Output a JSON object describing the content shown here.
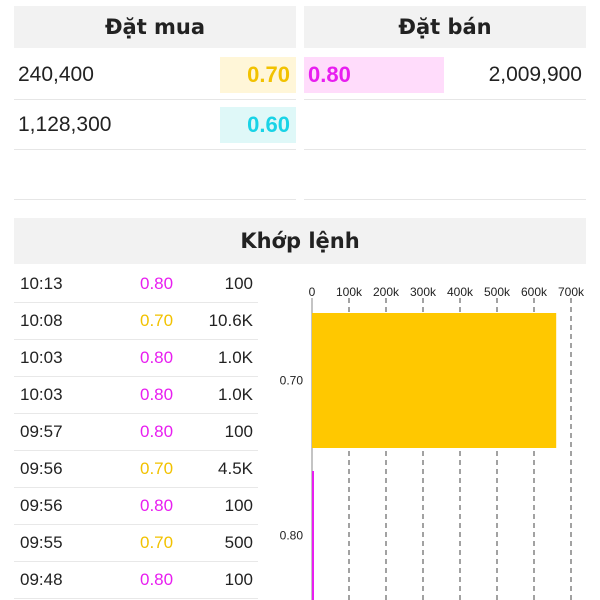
{
  "order_book": {
    "buy_title": "Đặt mua",
    "sell_title": "Đặt bán",
    "buy": [
      {
        "volume": "240,400",
        "price": "0.70",
        "color": "#f2c200",
        "bg": "#fff6d8"
      },
      {
        "volume": "1,128,300",
        "price": "0.60",
        "color": "#19d3e6",
        "bg": "#dff8f8"
      }
    ],
    "sell": [
      {
        "volume": "2,009,900",
        "price": "0.80",
        "color": "#e81ef0",
        "bg": "#ffdcfb"
      }
    ]
  },
  "match": {
    "title": "Khớp lệnh",
    "trades": [
      {
        "time": "10:13",
        "price": "0.80",
        "volume": "100",
        "color": "#e81ef0"
      },
      {
        "time": "10:08",
        "price": "0.70",
        "volume": "10.6K",
        "color": "#f2c200"
      },
      {
        "time": "10:03",
        "price": "0.80",
        "volume": "1.0K",
        "color": "#e81ef0"
      },
      {
        "time": "10:03",
        "price": "0.80",
        "volume": "1.0K",
        "color": "#e81ef0"
      },
      {
        "time": "09:57",
        "price": "0.80",
        "volume": "100",
        "color": "#e81ef0"
      },
      {
        "time": "09:56",
        "price": "0.70",
        "volume": "4.5K",
        "color": "#f2c200"
      },
      {
        "time": "09:56",
        "price": "0.80",
        "volume": "100",
        "color": "#e81ef0"
      },
      {
        "time": "09:55",
        "price": "0.70",
        "volume": "500",
        "color": "#f2c200"
      },
      {
        "time": "09:48",
        "price": "0.80",
        "volume": "100",
        "color": "#e81ef0"
      }
    ]
  },
  "chart_data": {
    "type": "bar",
    "orientation": "horizontal",
    "categories": [
      "0.70",
      "0.80"
    ],
    "values": [
      660000,
      1500
    ],
    "colors": [
      "#ffc800",
      "#e81ef0"
    ],
    "xlim": [
      0,
      700000
    ],
    "x_ticks": [
      {
        "value": 0,
        "label": "0"
      },
      {
        "value": 100000,
        "label": "100k"
      },
      {
        "value": 200000,
        "label": "200k"
      },
      {
        "value": 300000,
        "label": "300k"
      },
      {
        "value": 400000,
        "label": "400k"
      },
      {
        "value": 500000,
        "label": "500k"
      },
      {
        "value": 600000,
        "label": "600k"
      },
      {
        "value": 700000,
        "label": "700k"
      }
    ],
    "grid": "vertical-dashed",
    "axis_position": "top"
  }
}
